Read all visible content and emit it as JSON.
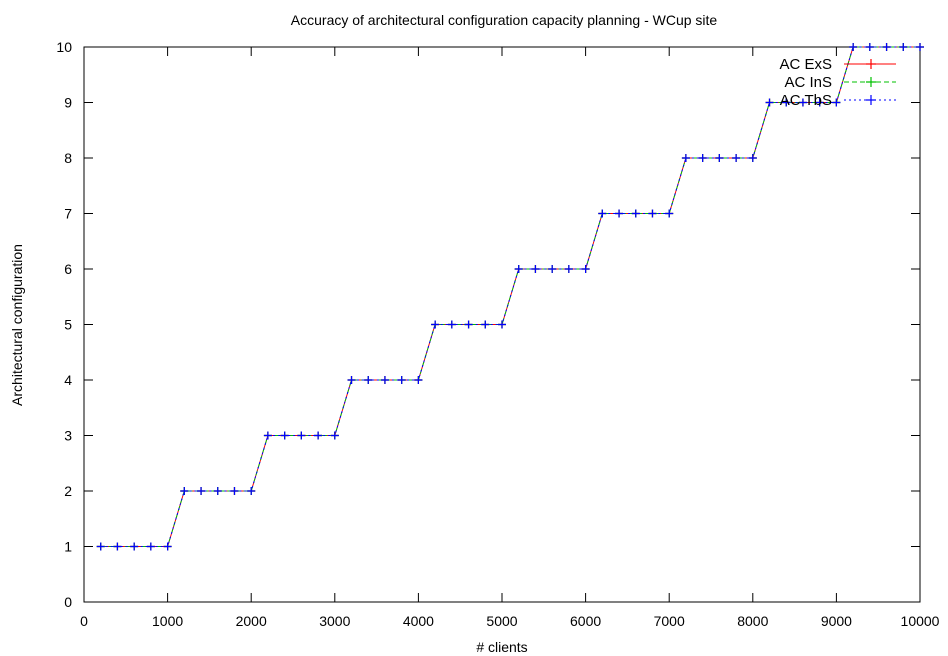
{
  "chart_data": {
    "type": "line",
    "title": "Accuracy of architectural configuration capacity planning - WCup site",
    "xlabel": "# clients",
    "ylabel": "Architectural configuration",
    "xlim": [
      0,
      10000
    ],
    "ylim": [
      0,
      10
    ],
    "x_ticks": [
      0,
      1000,
      2000,
      3000,
      4000,
      5000,
      6000,
      7000,
      8000,
      9000,
      10000
    ],
    "y_ticks": [
      0,
      1,
      2,
      3,
      4,
      5,
      6,
      7,
      8,
      9,
      10
    ],
    "grid": false,
    "legend_position": "top-right",
    "x": [
      200,
      400,
      600,
      800,
      1000,
      1200,
      1400,
      1600,
      1800,
      2000,
      2200,
      2400,
      2600,
      2800,
      3000,
      3200,
      3400,
      3600,
      3800,
      4000,
      4200,
      4400,
      4600,
      4800,
      5000,
      5200,
      5400,
      5600,
      5800,
      6000,
      6200,
      6400,
      6600,
      6800,
      7000,
      7200,
      7400,
      7600,
      7800,
      8000,
      8200,
      8400,
      8600,
      8800,
      9000,
      9200,
      9400,
      9600,
      9800,
      10000
    ],
    "series": [
      {
        "name": "AC ExS",
        "color": "#ff0000",
        "dash": "solid",
        "values": [
          1,
          1,
          1,
          1,
          1,
          2,
          2,
          2,
          2,
          2,
          3,
          3,
          3,
          3,
          3,
          4,
          4,
          4,
          4,
          4,
          5,
          5,
          5,
          5,
          5,
          6,
          6,
          6,
          6,
          6,
          7,
          7,
          7,
          7,
          7,
          8,
          8,
          8,
          8,
          8,
          9,
          9,
          9,
          9,
          9,
          10,
          10,
          10,
          10,
          10
        ]
      },
      {
        "name": "AC InS",
        "color": "#00c000",
        "dash": "dashed",
        "values": [
          1,
          1,
          1,
          1,
          1,
          2,
          2,
          2,
          2,
          2,
          3,
          3,
          3,
          3,
          3,
          4,
          4,
          4,
          4,
          4,
          5,
          5,
          5,
          5,
          5,
          6,
          6,
          6,
          6,
          6,
          7,
          7,
          7,
          7,
          7,
          8,
          8,
          8,
          8,
          8,
          9,
          9,
          9,
          9,
          9,
          10,
          10,
          10,
          10,
          10
        ]
      },
      {
        "name": "AC TbS",
        "color": "#0000ff",
        "dash": "dotted",
        "values": [
          1,
          1,
          1,
          1,
          1,
          2,
          2,
          2,
          2,
          2,
          3,
          3,
          3,
          3,
          3,
          4,
          4,
          4,
          4,
          4,
          5,
          5,
          5,
          5,
          5,
          6,
          6,
          6,
          6,
          6,
          7,
          7,
          7,
          7,
          7,
          8,
          8,
          8,
          8,
          8,
          9,
          9,
          9,
          9,
          9,
          10,
          10,
          10,
          10,
          10
        ]
      }
    ]
  }
}
